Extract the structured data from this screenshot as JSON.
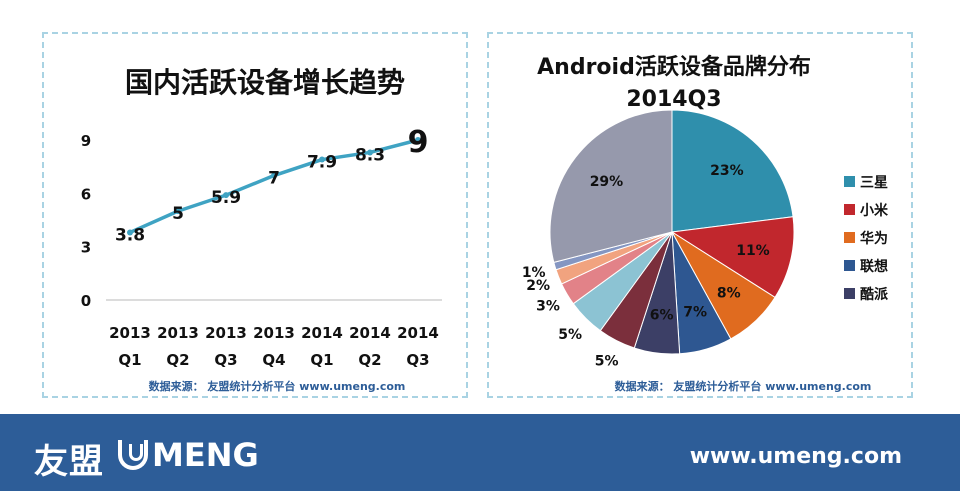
{
  "chart_data": [
    {
      "type": "line",
      "title": "国内活跃设备增长趋势",
      "categories": [
        [
          "2013",
          "Q1"
        ],
        [
          "2013",
          "Q2"
        ],
        [
          "2013",
          "Q3"
        ],
        [
          "2013",
          "Q4"
        ],
        [
          "2014",
          "Q1"
        ],
        [
          "2014",
          "Q2"
        ],
        [
          "2014",
          "Q3"
        ]
      ],
      "values": [
        3.8,
        5,
        5.9,
        7,
        7.9,
        8.3,
        9
      ],
      "value_labels": [
        "3.8",
        "5",
        "5.9",
        "7",
        "7.9",
        "8.3",
        "9"
      ],
      "yticks": [
        "0",
        "3",
        "6",
        "9"
      ],
      "ylim": [
        0,
        9
      ],
      "line_color": "#3fa3c3",
      "source": "数据来源： 友盟统计分析平台 www.umeng.com"
    },
    {
      "type": "pie",
      "title": "Android活跃设备品牌分布",
      "subtitle": "2014Q3",
      "slices": [
        {
          "name": "三星",
          "value": 23,
          "label": "23%",
          "color": "#2f8fac"
        },
        {
          "name": "小米",
          "value": 11,
          "label": "11%",
          "color": "#c1272d"
        },
        {
          "name": "华为",
          "value": 8,
          "label": "8%",
          "color": "#e06b1f"
        },
        {
          "name": "联想",
          "value": 7,
          "label": "7%",
          "color": "#2e5791"
        },
        {
          "name": "酷派",
          "value": 6,
          "label": "6%",
          "color": "#3c3f66"
        },
        {
          "name": "",
          "value": 5,
          "label": "5%",
          "color": "#7b2f3c"
        },
        {
          "name": "",
          "value": 5,
          "label": "5%",
          "color": "#8cc3d3"
        },
        {
          "name": "",
          "value": 3,
          "label": "3%",
          "color": "#e28288"
        },
        {
          "name": "",
          "value": 2,
          "label": "2%",
          "color": "#f1a37f"
        },
        {
          "name": "",
          "value": 1,
          "label": "1%",
          "color": "#8496c2"
        },
        {
          "name": "",
          "value": 29,
          "label": "29%",
          "color": "#9699ac"
        }
      ],
      "legend": [
        "三星",
        "小米",
        "华为",
        "联想",
        "酷派"
      ],
      "source": "数据来源： 友盟统计分析平台 www.umeng.com"
    }
  ],
  "footer": {
    "logo_cn": "友盟",
    "logo_en": "MENG",
    "url": "www.umeng.com",
    "background": "#2d5d98"
  }
}
